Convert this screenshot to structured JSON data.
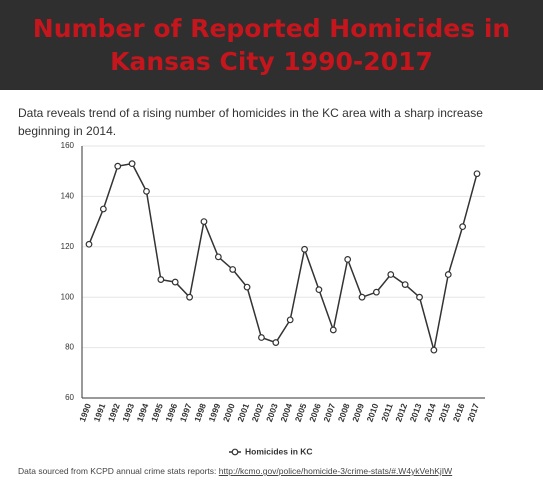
{
  "chart_data": {
    "type": "line",
    "title": "Number of Reported Homicides in Kansas City 1990-2017",
    "subtitle": "Data reveals trend of a rising number of homicides in the KC area with a sharp increase beginning in 2014.",
    "source": "Data sourced from KCPD annual crime stats reports:",
    "source_link": "http://kcmo.gov/police/homicide-3/crime-stats/#.W4ykVehKjIW",
    "categories": [
      "1990",
      "1991",
      "1992",
      "1993",
      "1994",
      "1995",
      "1996",
      "1997",
      "1998",
      "1999",
      "2000",
      "2001",
      "2002",
      "2003",
      "2004",
      "2005",
      "2006",
      "2007",
      "2008",
      "2009",
      "2010",
      "2011",
      "2012",
      "2013",
      "2014",
      "2015",
      "2016",
      "2017"
    ],
    "series": [
      {
        "name": "Homicides in KC",
        "color": "#333333",
        "values": [
          121,
          135,
          152,
          153,
          142,
          107,
          106,
          100,
          130,
          116,
          111,
          104,
          84,
          82,
          91,
          119,
          103,
          87,
          115,
          100,
          102,
          109,
          105,
          100,
          79,
          109,
          128,
          149
        ]
      }
    ],
    "ylim": [
      60,
      160
    ],
    "yticks": [
      60,
      80,
      100,
      120,
      140,
      160
    ],
    "grid": true,
    "legend": "bottom"
  }
}
